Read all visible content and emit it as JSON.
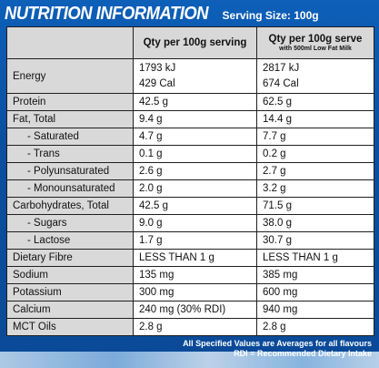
{
  "header": {
    "title": "NUTRITION INFORMATION",
    "serving_size": "Serving Size: 100g"
  },
  "table": {
    "col_header_1": "",
    "col_header_2": "Qty per 100g serving",
    "col_header_3_main": "Qty per 100g serve",
    "col_header_3_sub": "with 500ml Low Fat Milk",
    "energy": {
      "label": "Energy",
      "v1_kj": "1793 kJ",
      "v1_cal": "429 Cal",
      "v2_kj": "2817 kJ",
      "v2_cal": "674 Cal"
    },
    "rows": [
      {
        "label": "Protein",
        "sub": false,
        "v1": "42.5 g",
        "v2": "62.5 g"
      },
      {
        "label": "Fat,  Total",
        "sub": false,
        "v1": "9.4 g",
        "v2": "14.4 g"
      },
      {
        "label": "- Saturated",
        "sub": true,
        "v1": "4.7 g",
        "v2": "7.7 g"
      },
      {
        "label": "- Trans",
        "sub": true,
        "v1": "0.1 g",
        "v2": "0.2 g"
      },
      {
        "label": "- Polyunsaturated",
        "sub": true,
        "v1": "2.6 g",
        "v2": "2.7 g"
      },
      {
        "label": "- Monounsaturated",
        "sub": true,
        "v1": "2.0 g",
        "v2": "3.2 g"
      },
      {
        "label": "Carbohydrates,  Total",
        "sub": false,
        "v1": "42.5 g",
        "v2": "71.5 g"
      },
      {
        "label": "- Sugars",
        "sub": true,
        "v1": "9.0 g",
        "v2": "38.0 g"
      },
      {
        "label": "- Lactose",
        "sub": true,
        "v1": "1.7 g",
        "v2": "30.7 g"
      },
      {
        "label": "Dietary Fibre",
        "sub": false,
        "v1": "LESS THAN 1 g",
        "v2": "LESS THAN 1 g"
      },
      {
        "label": "Sodium",
        "sub": false,
        "v1": "135 mg",
        "v2": "385 mg"
      },
      {
        "label": "Potassium",
        "sub": false,
        "v1": "300 mg",
        "v2": "600 mg"
      },
      {
        "label": "Calcium",
        "sub": false,
        "v1": "240 mg (30% RDI)",
        "v2": "940 mg"
      },
      {
        "label": "MCT Oils",
        "sub": false,
        "v1": "2.8 g",
        "v2": "2.8 g"
      }
    ]
  },
  "footnotes": {
    "line1": "All Specified Values are Averages for all flavours",
    "line2": "RDI = Recommended Dietary Intake"
  }
}
